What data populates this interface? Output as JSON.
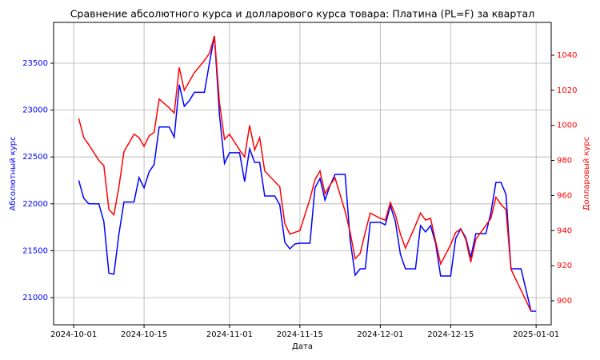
{
  "chart_data": {
    "type": "line",
    "title": "Сравнение абсолютного курса и долларового курса товара: Платина (PL=F) за квартал",
    "xlabel": "Дата",
    "ylabel": "Абсолютный курс",
    "y2label": "Долларовый курс",
    "x": [
      "2024-10-02",
      "2024-10-03",
      "2024-10-04",
      "2024-10-06",
      "2024-10-07",
      "2024-10-08",
      "2024-10-09",
      "2024-10-10",
      "2024-10-11",
      "2024-10-13",
      "2024-10-14",
      "2024-10-15",
      "2024-10-16",
      "2024-10-17",
      "2024-10-18",
      "2024-10-20",
      "2024-10-21",
      "2024-10-22",
      "2024-10-23",
      "2024-10-24",
      "2024-10-25",
      "2024-10-27",
      "2024-10-28",
      "2024-10-29",
      "2024-10-30",
      "2024-10-31",
      "2024-11-01",
      "2024-11-03",
      "2024-11-04",
      "2024-11-05",
      "2024-11-06",
      "2024-11-07",
      "2024-11-08",
      "2024-11-10",
      "2024-11-11",
      "2024-11-12",
      "2024-11-13",
      "2024-11-14",
      "2024-11-15",
      "2024-11-17",
      "2024-11-18",
      "2024-11-19",
      "2024-11-20",
      "2024-11-21",
      "2024-11-22",
      "2024-11-24",
      "2024-11-25",
      "2024-11-26",
      "2024-11-27",
      "2024-11-28",
      "2024-11-29",
      "2024-12-01",
      "2024-12-02",
      "2024-12-03",
      "2024-12-04",
      "2024-12-05",
      "2024-12-06",
      "2024-12-08",
      "2024-12-09",
      "2024-12-10",
      "2024-12-11",
      "2024-12-12",
      "2024-12-13",
      "2024-12-15",
      "2024-12-16",
      "2024-12-17",
      "2024-12-18",
      "2024-12-19",
      "2024-12-20",
      "2024-12-22",
      "2024-12-23",
      "2024-12-24",
      "2024-12-25",
      "2024-12-26",
      "2024-12-27",
      "2024-12-29",
      "2024-12-31",
      "2025-01-01"
    ],
    "series": [
      {
        "color": "#0000ff",
        "axis": "y",
        "values": [
          22250,
          22060,
          22000,
          22000,
          21810,
          21260,
          21250,
          21680,
          22020,
          22020,
          22280,
          22170,
          22340,
          22420,
          22820,
          22820,
          22710,
          23270,
          23040,
          23100,
          23190,
          23190,
          23500,
          23790,
          22950,
          22430,
          22545,
          22545,
          22237,
          22587,
          22442,
          22442,
          22084,
          22084,
          21990,
          21590,
          21520,
          21572,
          21580,
          21580,
          22170,
          22271,
          22040,
          22195,
          22314,
          22314,
          21615,
          21240,
          21307,
          21307,
          21802,
          21802,
          21776,
          21981,
          21810,
          21461,
          21307,
          21307,
          21768,
          21700,
          21768,
          21580,
          21230,
          21230,
          21631,
          21734,
          21640,
          21427,
          21683,
          21683,
          21905,
          22229,
          22229,
          22101,
          21307,
          21307,
          20855,
          20855
        ]
      },
      {
        "color": "#ff0000",
        "axis": "y2",
        "values": [
          1004,
          993,
          989,
          980,
          977,
          952,
          949,
          965,
          985,
          995,
          993,
          988,
          994,
          996,
          1015,
          1010,
          1007,
          1033,
          1020,
          1025,
          1030,
          1037,
          1041,
          1051,
          1013,
          992,
          995,
          986,
          982,
          1000,
          986,
          993,
          974,
          968,
          965,
          944,
          938,
          939,
          940,
          958,
          969,
          974,
          961,
          966,
          970,
          951,
          939,
          924,
          927,
          939,
          950,
          947,
          946,
          956,
          949,
          938,
          930,
          943,
          950,
          946,
          947,
          934,
          921,
          932,
          939,
          941,
          935,
          922,
          935,
          943,
          947,
          959,
          955,
          952,
          918,
          906,
          894,
          null
        ]
      }
    ],
    "xlim": [
      "2024-09-27",
      "2025-01-04"
    ],
    "xticks": [
      "2024-10-01",
      "2024-10-15",
      "2024-11-01",
      "2024-11-15",
      "2024-12-01",
      "2024-12-15",
      "2025-01-01"
    ],
    "ylim": [
      20710,
      23935
    ],
    "yticks": [
      21000,
      21500,
      22000,
      22500,
      23000,
      23500
    ],
    "y2lim": [
      886.3,
      1058.7
    ],
    "y2ticks": [
      900,
      920,
      940,
      960,
      980,
      1000,
      1020,
      1040
    ],
    "grid": true
  }
}
